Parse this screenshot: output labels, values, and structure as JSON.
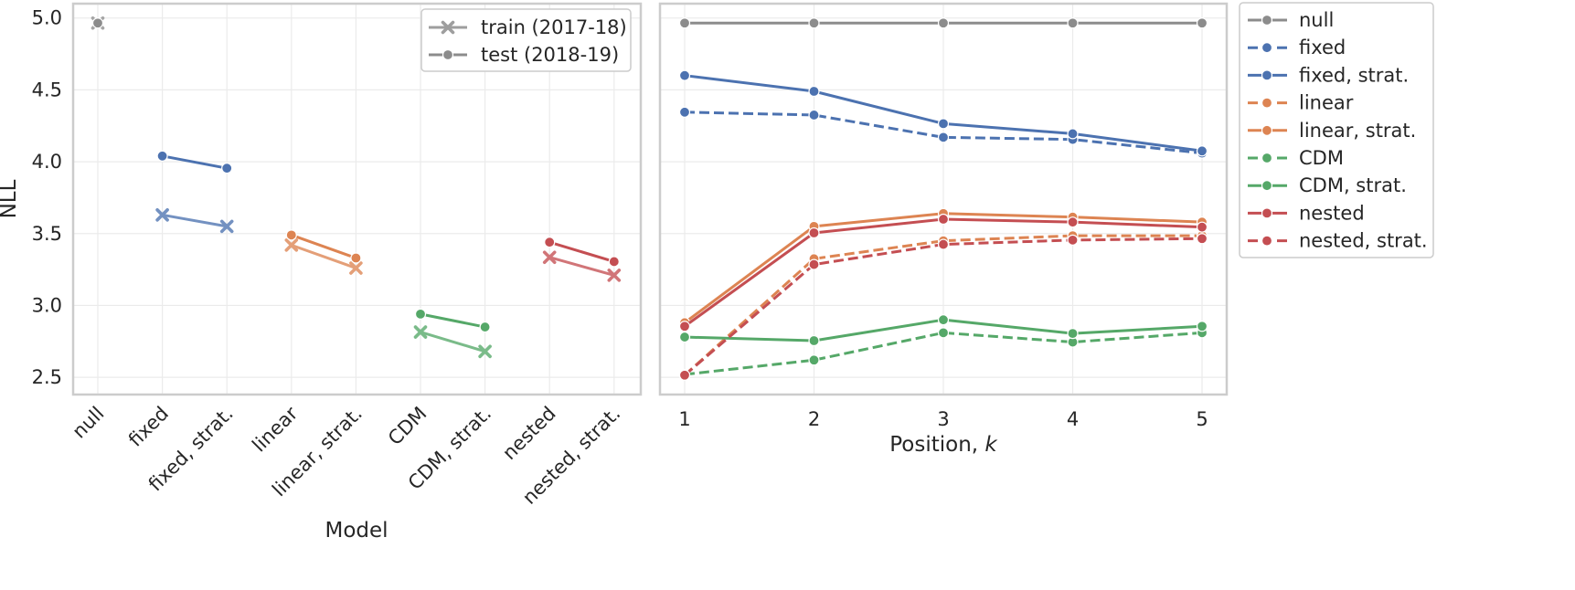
{
  "chart_data": [
    {
      "type": "line",
      "id": "left",
      "xlabel": "Model",
      "ylabel": "NLL",
      "ylim": [
        2.38,
        5.1
      ],
      "yticks": [
        2.5,
        3.0,
        3.5,
        4.0,
        4.5,
        5.0
      ],
      "ytick_labels": [
        "2.5",
        "3.0",
        "3.5",
        "4.0",
        "4.5",
        "5.0"
      ],
      "categories": [
        "null",
        "fixed",
        "fixed, strat.",
        "linear",
        "linear, strat.",
        "CDM",
        "CDM, strat.",
        "nested",
        "nested, strat."
      ],
      "legend": [
        {
          "label": "train (2017-18)",
          "color": "#9e9e9e",
          "marker": "x"
        },
        {
          "label": "test (2018-19)",
          "color": "#8c8c8c",
          "marker": "o"
        }
      ],
      "series": [
        {
          "name": "null",
          "color": "#8c8c8c",
          "indices": [
            0
          ],
          "train": [
            4.965
          ],
          "test": [
            4.965
          ]
        },
        {
          "name": "fixed",
          "color": "#4c72b0",
          "indices": [
            1,
            2
          ],
          "train": [
            3.63,
            3.55
          ],
          "test": [
            4.04,
            3.955
          ]
        },
        {
          "name": "linear",
          "color": "#dd8452",
          "indices": [
            3,
            4
          ],
          "train": [
            3.42,
            3.26
          ],
          "test": [
            3.49,
            3.33
          ]
        },
        {
          "name": "CDM",
          "color": "#55a868",
          "indices": [
            5,
            6
          ],
          "train": [
            2.815,
            2.68
          ],
          "test": [
            2.94,
            2.85
          ]
        },
        {
          "name": "nested",
          "color": "#c44e52",
          "indices": [
            7,
            8
          ],
          "train": [
            3.335,
            3.21
          ],
          "test": [
            3.44,
            3.305
          ]
        }
      ]
    },
    {
      "type": "line",
      "id": "right",
      "xlabel": "Position, ",
      "xlabel_italic": "k",
      "ylim": [
        2.38,
        5.1
      ],
      "x": [
        1,
        2,
        3,
        4,
        5
      ],
      "xtick_labels": [
        "1",
        "2",
        "3",
        "4",
        "5"
      ],
      "series": [
        {
          "name": "null",
          "color": "#8c8c8c",
          "dash": false,
          "values": [
            4.965,
            4.965,
            4.965,
            4.965,
            4.965
          ]
        },
        {
          "name": "fixed",
          "color": "#4c72b0",
          "dash": true,
          "values": [
            4.345,
            4.325,
            4.17,
            4.155,
            4.06
          ]
        },
        {
          "name": "fixed, strat.",
          "color": "#4c72b0",
          "dash": false,
          "values": [
            4.6,
            4.49,
            4.265,
            4.195,
            4.075
          ]
        },
        {
          "name": "linear",
          "color": "#dd8452",
          "dash": true,
          "values": [
            2.515,
            3.325,
            3.45,
            3.485,
            3.485
          ]
        },
        {
          "name": "linear, strat.",
          "color": "#dd8452",
          "dash": false,
          "values": [
            2.88,
            3.55,
            3.64,
            3.615,
            3.58
          ]
        },
        {
          "name": "CDM",
          "color": "#55a868",
          "dash": true,
          "values": [
            2.52,
            2.62,
            2.81,
            2.745,
            2.81
          ]
        },
        {
          "name": "CDM, strat.",
          "color": "#55a868",
          "dash": false,
          "values": [
            2.78,
            2.755,
            2.9,
            2.805,
            2.855
          ]
        },
        {
          "name": "nested",
          "color": "#c44e52",
          "dash": false,
          "values": [
            2.855,
            3.505,
            3.6,
            3.58,
            3.545
          ]
        },
        {
          "name": "nested, strat.",
          "color": "#c44e52",
          "dash": true,
          "values": [
            2.515,
            3.285,
            3.425,
            3.455,
            3.465
          ]
        }
      ]
    }
  ]
}
